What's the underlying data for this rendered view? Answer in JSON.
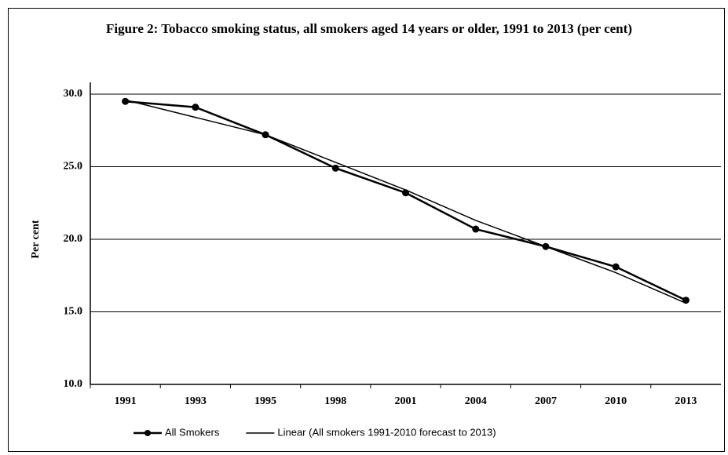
{
  "chart_data": {
    "type": "line",
    "title": "Figure 2: Tobacco smoking status, all smokers aged 14 years or older, 1991 to 2013 (per cent)",
    "y_label": "Per cent",
    "categories": [
      "1991",
      "1993",
      "1995",
      "1998",
      "2001",
      "2004",
      "2007",
      "2010",
      "2013"
    ],
    "series": [
      {
        "name": "All Smokers",
        "color": "#000000",
        "marker": true,
        "values": [
          29.5,
          29.1,
          27.2,
          24.9,
          23.2,
          20.7,
          19.5,
          18.1,
          15.8
        ]
      },
      {
        "name": "Linear (All smokers 1991-2010 forecast to 2013)",
        "color": "#000000",
        "marker": false,
        "values": [
          29.6,
          28.4,
          27.2,
          25.3,
          23.4,
          21.3,
          19.5,
          17.7,
          15.6
        ]
      }
    ],
    "ylim": [
      10,
      30
    ],
    "yticks": [
      {
        "value": 10,
        "label": "10.0"
      },
      {
        "value": 15,
        "label": "15.0"
      },
      {
        "value": 20,
        "label": "20.0"
      },
      {
        "value": 25,
        "label": "25.0"
      },
      {
        "value": 30,
        "label": "30.0"
      }
    ],
    "grid": true,
    "legend": "bottom"
  }
}
